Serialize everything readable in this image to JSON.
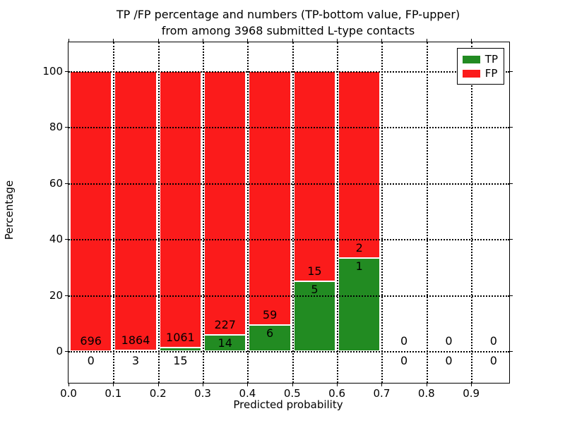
{
  "chart_data": {
    "type": "bar",
    "stacked": true,
    "title_lines": [
      "TP /FP percentage and numbers (TP-bottom value, FP-upper)",
      "from among 3968 submitted L-type contacts"
    ],
    "xlabel": "Predicted probability",
    "ylabel": "Percentage",
    "total_contacts": 3968,
    "xlim": [
      0,
      0.985
    ],
    "ylim": [
      -11.3,
      110.3
    ],
    "bin_width": 0.1,
    "x_tick_values": [
      0.0,
      0.1,
      0.2,
      0.3,
      0.4,
      0.5,
      0.6,
      0.7,
      0.8,
      0.9
    ],
    "x_tick_labels": [
      "0.0",
      "0.1",
      "0.2",
      "0.3",
      "0.4",
      "0.5",
      "0.6",
      "0.7",
      "0.8",
      "0.9"
    ],
    "y_tick_values": [
      0,
      20,
      40,
      60,
      80,
      100
    ],
    "y_tick_labels": [
      "0",
      "20",
      "40",
      "60",
      "80",
      "100"
    ],
    "grid": {
      "style": "dotted",
      "color": "#000000",
      "above_bars": true
    },
    "colors": {
      "tp": "#228B22",
      "fp": "#FB1B1B",
      "bar_edge": "#FFFFFF"
    },
    "legend": {
      "position": "upper right",
      "entries": [
        {
          "label": "TP",
          "color": "#228B22"
        },
        {
          "label": "FP",
          "color": "#FB1B1B"
        }
      ]
    },
    "bins": [
      {
        "x0": 0.0,
        "x1": 0.1,
        "tp": 0,
        "fp": 696,
        "tp_pct": 0,
        "fp_pct": 100,
        "total_pct": 100
      },
      {
        "x0": 0.1,
        "x1": 0.2,
        "tp": 3,
        "fp": 1864,
        "tp_pct": 0.161,
        "fp_pct": 99.839,
        "total_pct": 100
      },
      {
        "x0": 0.2,
        "x1": 0.3,
        "tp": 15,
        "fp": 1061,
        "tp_pct": 1.394,
        "fp_pct": 98.606,
        "total_pct": 100
      },
      {
        "x0": 0.3,
        "x1": 0.4,
        "tp": 14,
        "fp": 227,
        "tp_pct": 5.809,
        "fp_pct": 94.191,
        "total_pct": 100
      },
      {
        "x0": 0.4,
        "x1": 0.5,
        "tp": 6,
        "fp": 59,
        "tp_pct": 9.231,
        "fp_pct": 90.769,
        "total_pct": 100
      },
      {
        "x0": 0.5,
        "x1": 0.6,
        "tp": 5,
        "fp": 15,
        "tp_pct": 25.0,
        "fp_pct": 75.0,
        "total_pct": 100
      },
      {
        "x0": 0.6,
        "x1": 0.7,
        "tp": 1,
        "fp": 2,
        "tp_pct": 33.333,
        "fp_pct": 66.667,
        "total_pct": 100
      },
      {
        "x0": 0.7,
        "x1": 0.8,
        "tp": 0,
        "fp": 0,
        "tp_pct": 0,
        "fp_pct": 0,
        "total_pct": 0
      },
      {
        "x0": 0.8,
        "x1": 0.9,
        "tp": 0,
        "fp": 0,
        "tp_pct": 0,
        "fp_pct": 0,
        "total_pct": 0
      },
      {
        "x0": 0.9,
        "x1": 1.0,
        "tp": 0,
        "fp": 0,
        "tp_pct": 0,
        "fp_pct": 0,
        "total_pct": 0
      }
    ]
  }
}
